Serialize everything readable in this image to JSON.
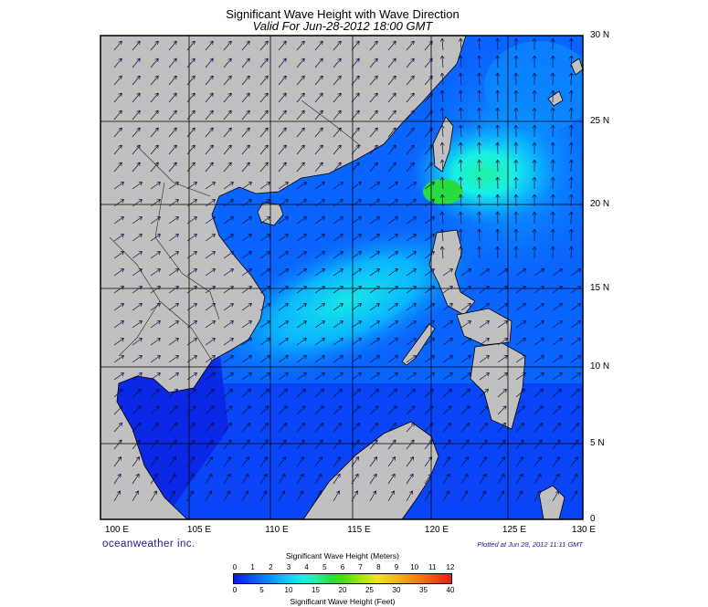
{
  "title": "Significant Wave Height with Wave Direction",
  "subtitle": "Valid For Jun-28-2012 18:00 GMT",
  "lat_labels": [
    "30 N",
    "25 N",
    "20 N",
    "15 N",
    "10 N",
    "5 N",
    "0"
  ],
  "lon_labels": [
    "100 E",
    "105 E",
    "110 E",
    "115 E",
    "120 E",
    "125 E",
    "130 E"
  ],
  "brand": "oceanweather inc.",
  "plotted": "Plotted at Jun 28, 2012 11:11 GMT",
  "colorbar": {
    "title_meters": "Significant Wave Height (Meters)",
    "title_feet": "Significant Wave Height (Feet)",
    "meters_ticks": [
      "0",
      "1",
      "2",
      "3",
      "4",
      "5",
      "6",
      "7",
      "8",
      "9",
      "10",
      "11",
      "12"
    ],
    "feet_ticks": [
      "0",
      "5",
      "10",
      "15",
      "20",
      "25",
      "30",
      "35",
      "40"
    ]
  },
  "colors": {
    "land": "#c0c0c0",
    "deep_blue": "#0a14f0",
    "mid_blue": "#0a64ff",
    "light_blue": "#0ab4ff",
    "cyan": "#17f0e6",
    "green": "#28e046",
    "arrow": "#101040"
  }
}
